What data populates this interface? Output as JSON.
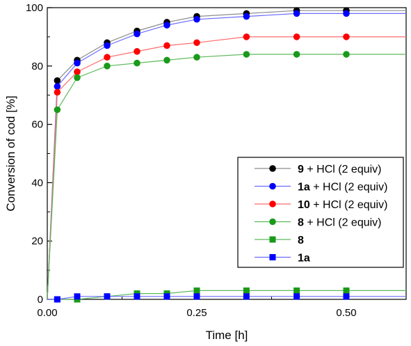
{
  "chart_data": {
    "type": "line",
    "xlabel": "Time [h]",
    "ylabel": "Conversion of cod [%]",
    "xlim": [
      0,
      0.6
    ],
    "ylim": [
      0,
      100
    ],
    "xticks": [
      0.0,
      0.25,
      0.5
    ],
    "xtick_labels": [
      "0.00",
      "0.25",
      "0.50"
    ],
    "yticks": [
      0,
      20,
      40,
      60,
      80,
      100
    ],
    "ytick_labels": [
      "0",
      "20",
      "40",
      "60",
      "80",
      "100"
    ],
    "grid": false,
    "legend_position": "right",
    "series": [
      {
        "name_bold": "9",
        "name_rest": " + HCl (2 equiv)",
        "color": "#000000",
        "marker": "circle",
        "line_color": "#8c8c8c",
        "x": [
          0,
          0.0167,
          0.05,
          0.1,
          0.15,
          0.2,
          0.25,
          0.333,
          0.417,
          0.5,
          0.6
        ],
        "y": [
          0,
          75,
          82,
          88,
          92,
          95,
          97,
          98,
          99,
          99,
          99
        ]
      },
      {
        "name_bold": "1a",
        "name_rest": " + HCl (2 equiv)",
        "color": "#0000ff",
        "marker": "circle",
        "line_color": "#6b6bff",
        "x": [
          0,
          0.0167,
          0.05,
          0.1,
          0.15,
          0.2,
          0.25,
          0.333,
          0.417,
          0.5,
          0.6
        ],
        "y": [
          0,
          73,
          81,
          87,
          91,
          94,
          96,
          97,
          98,
          98,
          98
        ]
      },
      {
        "name_bold": "10",
        "name_rest": " + HCl (2 equiv)",
        "color": "#ff0000",
        "marker": "circle",
        "line_color": "#ff6b6b",
        "x": [
          0,
          0.0167,
          0.05,
          0.1,
          0.15,
          0.2,
          0.25,
          0.333,
          0.417,
          0.5,
          0.6
        ],
        "y": [
          0,
          71,
          78,
          83,
          85,
          87,
          88,
          90,
          90,
          90,
          90
        ]
      },
      {
        "name_bold": "8",
        "name_rest": " + HCl (2 equiv)",
        "color": "#1a9a1a",
        "marker": "circle",
        "line_color": "#5cba5c",
        "x": [
          0,
          0.0167,
          0.05,
          0.1,
          0.15,
          0.2,
          0.25,
          0.333,
          0.417,
          0.5,
          0.6
        ],
        "y": [
          0,
          65,
          76,
          80,
          81,
          82,
          83,
          84,
          84,
          84,
          84
        ]
      },
      {
        "name_bold": "8",
        "name_rest": "",
        "color": "#1a9a1a",
        "marker": "square",
        "line_color": "#5cba5c",
        "x": [
          0,
          0.0167,
          0.05,
          0.1,
          0.15,
          0.2,
          0.25,
          0.333,
          0.417,
          0.5,
          0.6
        ],
        "y": [
          0,
          0,
          0,
          1,
          2,
          2,
          3,
          3,
          3,
          3,
          3
        ]
      },
      {
        "name_bold": "1a",
        "name_rest": "",
        "color": "#0000ff",
        "marker": "square",
        "line_color": "#6b6bff",
        "x": [
          0,
          0.0167,
          0.05,
          0.1,
          0.15,
          0.2,
          0.25,
          0.333,
          0.417,
          0.5,
          0.6
        ],
        "y": [
          0,
          0,
          1,
          1,
          1,
          1,
          1,
          1,
          1,
          1,
          1
        ]
      }
    ]
  }
}
